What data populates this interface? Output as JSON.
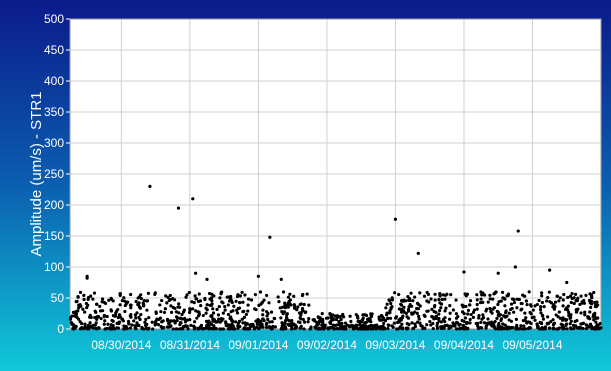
{
  "chart_data": {
    "type": "scatter",
    "title": "",
    "xlabel": "",
    "ylabel": "Amplitude (um/s) - STR1",
    "ylim": [
      0,
      500
    ],
    "y_ticks": [
      "0",
      "50",
      "100",
      "150",
      "200",
      "250",
      "300",
      "350",
      "400",
      "450",
      "500"
    ],
    "x_tick_labels": [
      "08/30/2014",
      "08/31/2014",
      "09/01/2014",
      "09/02/2014",
      "09/03/2014",
      "09/04/2014",
      "09/05/2014"
    ],
    "xlim": [
      "08/29/2014 06:00",
      "09/06/2014 00:00"
    ],
    "grid": true,
    "series": [
      {
        "marker_color": "#000000",
        "points": [
          {
            "x": "08/29/2014 12:00",
            "y": 85
          },
          {
            "x": "08/29/2014 12:00",
            "y": 82
          },
          {
            "x": "08/30/2014 10:00",
            "y": 230
          },
          {
            "x": "08/30/2014 20:00",
            "y": 195
          },
          {
            "x": "08/31/2014 01:00",
            "y": 210
          },
          {
            "x": "08/31/2014 02:00",
            "y": 90
          },
          {
            "x": "08/31/2014 06:00",
            "y": 80
          },
          {
            "x": "09/01/2014 00:00",
            "y": 85
          },
          {
            "x": "09/01/2014 04:00",
            "y": 148
          },
          {
            "x": "09/01/2014 08:00",
            "y": 80
          },
          {
            "x": "09/03/2014 00:00",
            "y": 177
          },
          {
            "x": "09/03/2014 08:00",
            "y": 122
          },
          {
            "x": "09/04/2014 00:00",
            "y": 92
          },
          {
            "x": "09/04/2014 12:00",
            "y": 90
          },
          {
            "x": "09/04/2014 19:00",
            "y": 158
          },
          {
            "x": "09/04/2014 18:00",
            "y": 100
          },
          {
            "x": "09/05/2014 06:00",
            "y": 95
          },
          {
            "x": "09/05/2014 12:00",
            "y": 75
          }
        ],
        "background_cloud": {
          "segments": [
            {
              "from": "08/29/2014 06:00",
              "to": "09/01/2014 18:00",
              "y_max": 60
            },
            {
              "from": "09/01/2014 18:00",
              "to": "09/02/2014 20:00",
              "y_max": 25
            },
            {
              "from": "09/02/2014 20:00",
              "to": "09/06/2014 00:00",
              "y_max": 60
            }
          ],
          "note_count_per_day": 180
        }
      }
    ]
  }
}
